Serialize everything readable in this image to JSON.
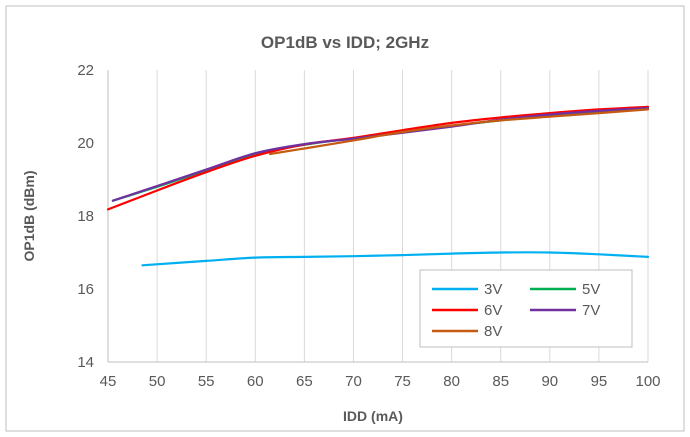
{
  "chart_data": {
    "type": "line",
    "title": "OP1dB vs IDD; 2GHz",
    "xlabel": "IDD (mA)",
    "ylabel": "OP1dB (dBm)",
    "xlim": [
      45,
      100
    ],
    "ylim": [
      14,
      22
    ],
    "xticks": [
      45,
      50,
      55,
      60,
      65,
      70,
      75,
      80,
      85,
      90,
      95,
      100
    ],
    "yticks": [
      14,
      16,
      18,
      20,
      22
    ],
    "grid": "vertical",
    "legend_position": "bottom-right",
    "series": [
      {
        "name": "3V",
        "color": "#00b0f0",
        "x": [
          48.5,
          55,
          60,
          65,
          70,
          75,
          80,
          85,
          90,
          95,
          100
        ],
        "y": [
          16.65,
          16.77,
          16.86,
          16.88,
          16.9,
          16.93,
          16.97,
          17.0,
          17.0,
          16.95,
          16.88
        ]
      },
      {
        "name": "5V",
        "color": "#00b050",
        "x": [
          45.5,
          50,
          55,
          60,
          65,
          70,
          75,
          80,
          85,
          90,
          95,
          100
        ],
        "y": [
          18.42,
          18.8,
          19.25,
          19.7,
          19.95,
          20.13,
          20.3,
          20.47,
          20.62,
          20.75,
          20.85,
          20.95
        ]
      },
      {
        "name": "6V",
        "color": "#ff0000",
        "x": [
          45,
          50,
          55,
          60,
          65,
          70,
          75,
          80,
          85,
          90,
          95,
          100
        ],
        "y": [
          18.18,
          18.7,
          19.2,
          19.65,
          19.96,
          20.14,
          20.35,
          20.55,
          20.7,
          20.82,
          20.92,
          20.99
        ]
      },
      {
        "name": "7V",
        "color": "#7030a0",
        "x": [
          45.5,
          50,
          55,
          60,
          65,
          70,
          75,
          80,
          85,
          90,
          95,
          100
        ],
        "y": [
          18.42,
          18.82,
          19.27,
          19.72,
          19.97,
          20.12,
          20.28,
          20.45,
          20.64,
          20.78,
          20.88,
          20.96
        ]
      },
      {
        "name": "8V",
        "color": "#c55a11",
        "x": [
          61.5,
          65,
          70,
          75,
          80,
          85,
          90,
          95,
          100
        ],
        "y": [
          19.7,
          19.85,
          20.07,
          20.3,
          20.48,
          20.62,
          20.72,
          20.82,
          20.92
        ]
      }
    ]
  }
}
